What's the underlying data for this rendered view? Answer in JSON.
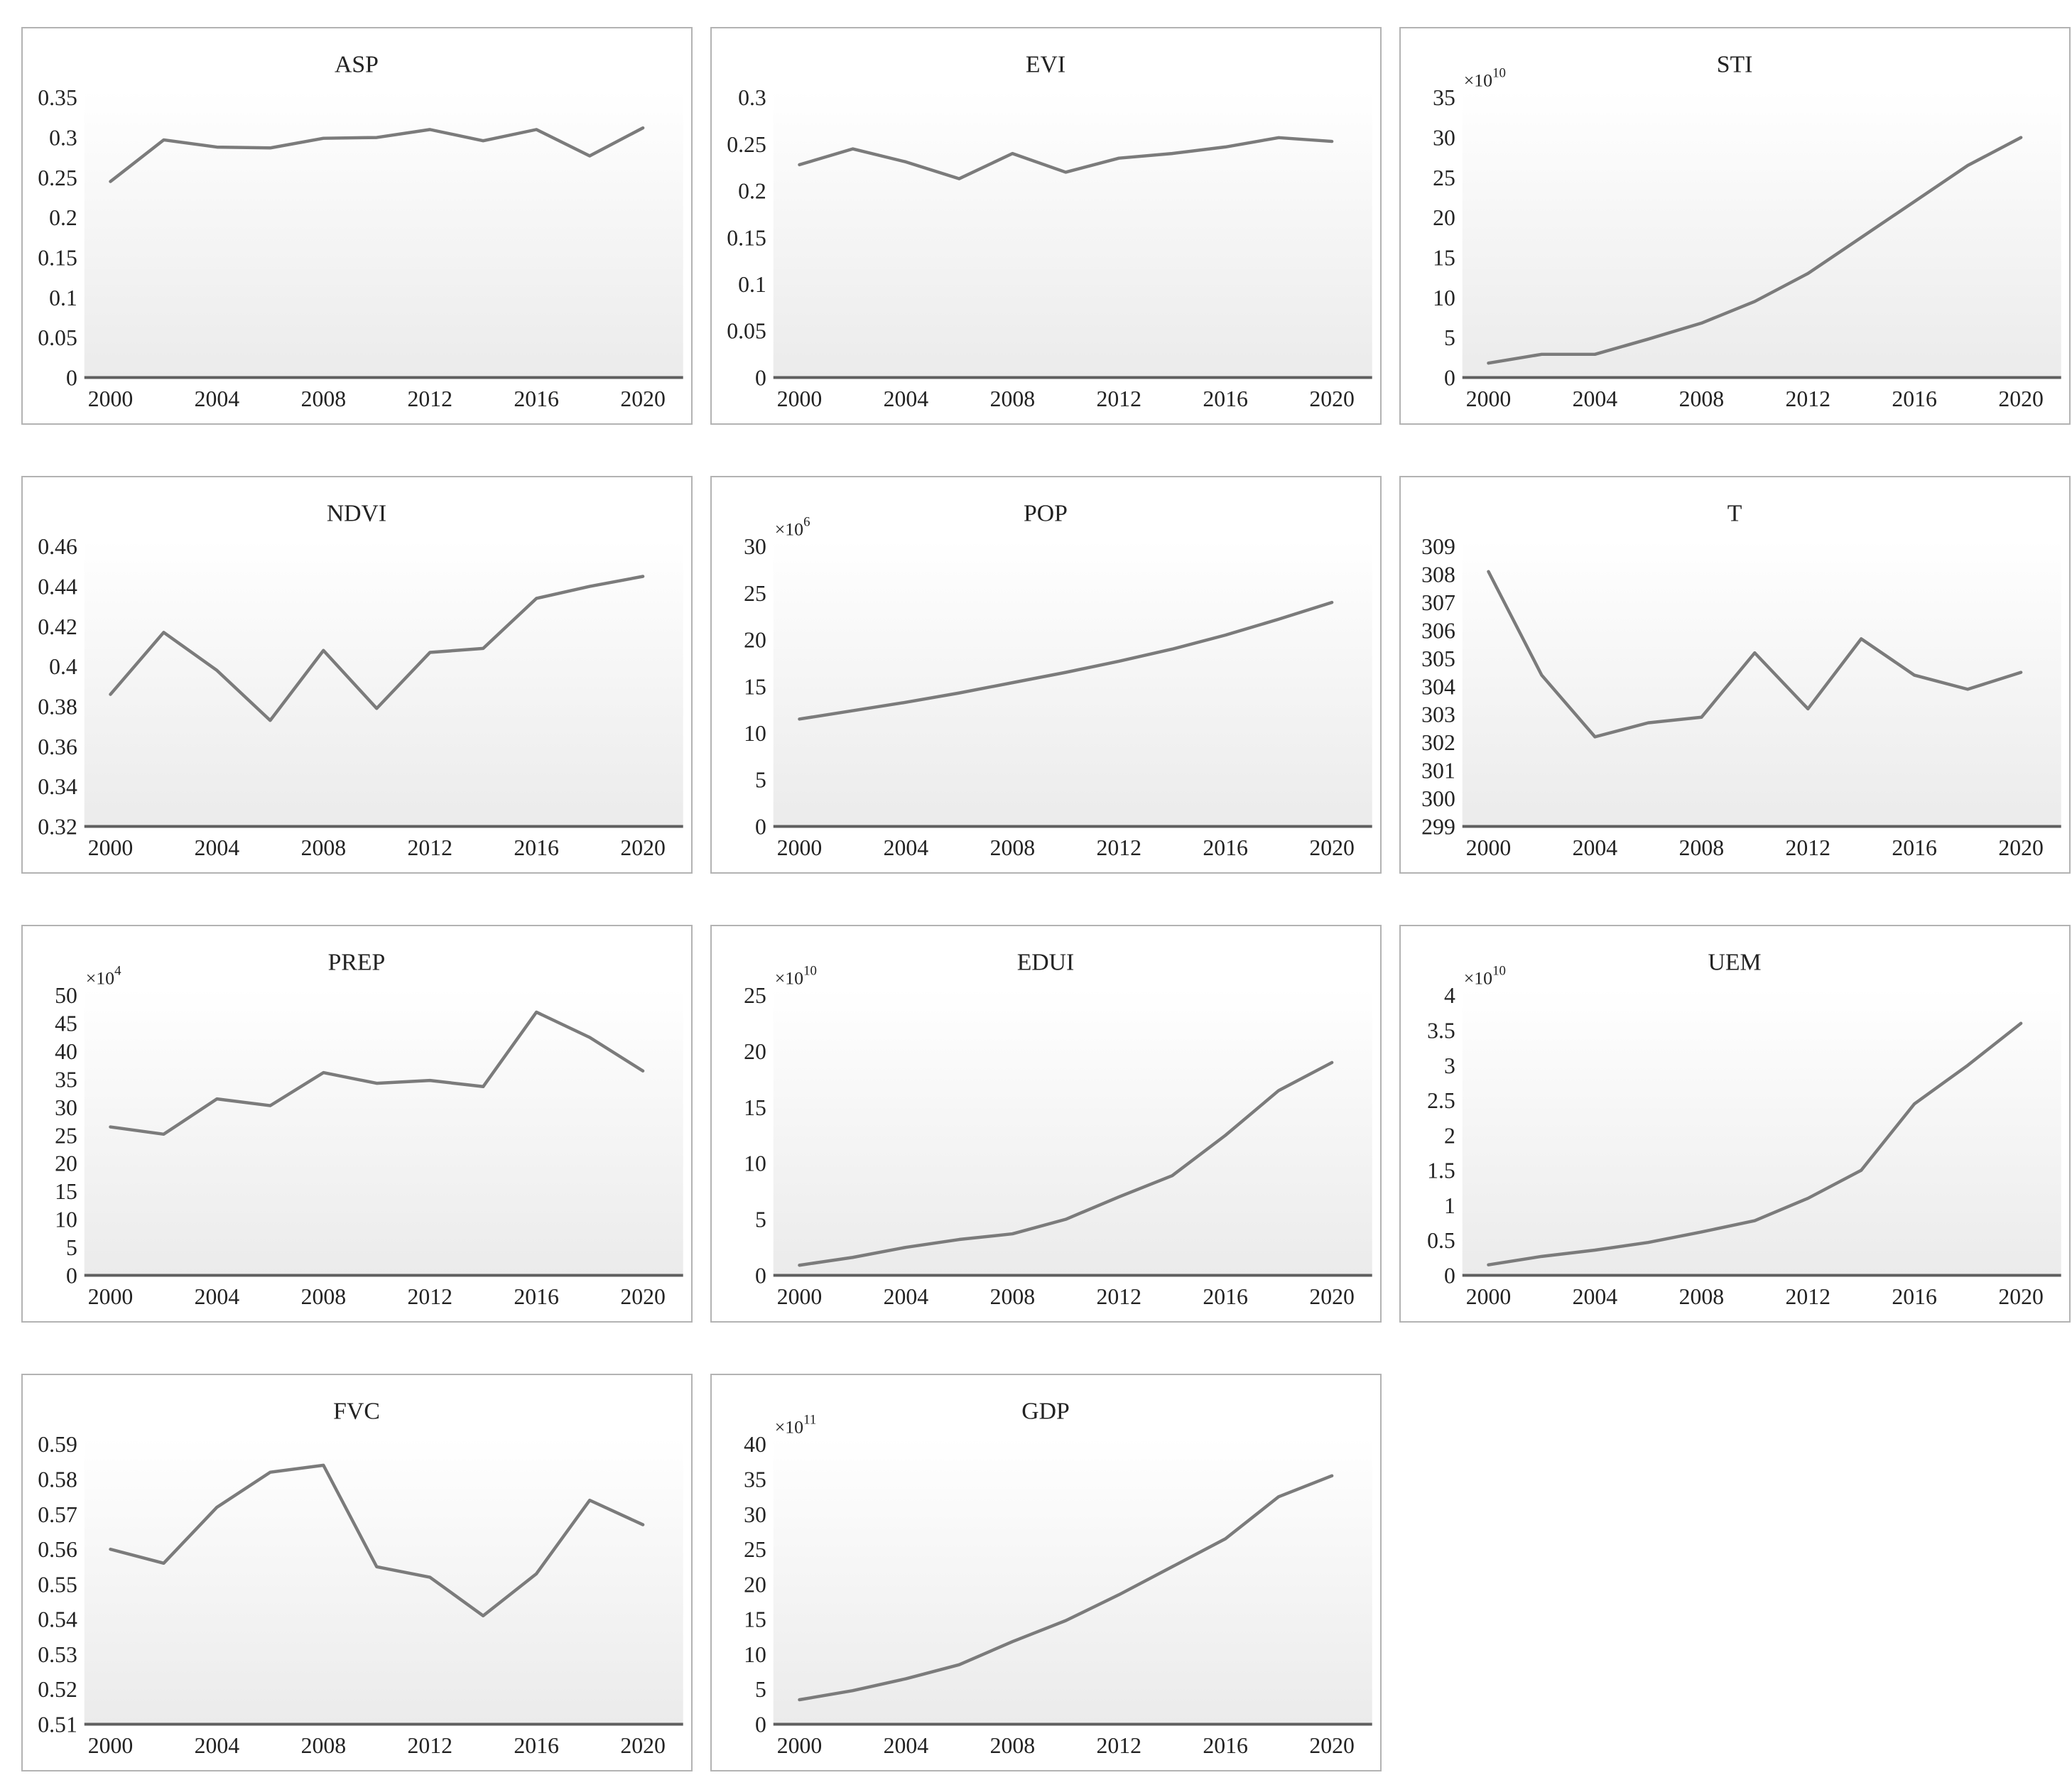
{
  "style": {
    "line_color": "#7b7b7b",
    "axis_color": "#5f5f5f",
    "border_color": "#b3b3b3",
    "text_color": "#222222",
    "plot_bg_top": "#ffffff",
    "plot_bg_bottom": "#ebebeb"
  },
  "x_tick_labels": [
    "2000",
    "2004",
    "2008",
    "2012",
    "2016",
    "2020"
  ],
  "chart_data": [
    {
      "type": "line",
      "title": "ASP",
      "exponent": null,
      "x": [
        2000,
        2002,
        2004,
        2006,
        2008,
        2010,
        2012,
        2014,
        2016,
        2018,
        2020
      ],
      "values": [
        0.245,
        0.297,
        0.288,
        0.287,
        0.299,
        0.3,
        0.31,
        0.296,
        0.31,
        0.277,
        0.312
      ],
      "ytick_labels": [
        "0",
        "0.05",
        "0.1",
        "0.15",
        "0.2",
        "0.25",
        "0.3",
        "0.35"
      ],
      "ylim": [
        0,
        0.35
      ],
      "xtick_labels": [
        "2000",
        "2004",
        "2008",
        "2012",
        "2016",
        "2020"
      ],
      "grid": false,
      "legend": null
    },
    {
      "type": "line",
      "title": "EVI",
      "exponent": null,
      "x": [
        2000,
        2002,
        2004,
        2006,
        2008,
        2010,
        2012,
        2014,
        2016,
        2018,
        2020
      ],
      "values": [
        0.228,
        0.245,
        0.231,
        0.213,
        0.24,
        0.22,
        0.235,
        0.24,
        0.247,
        0.257,
        0.253
      ],
      "ytick_labels": [
        "0",
        "0.05",
        "0.1",
        "0.15",
        "0.2",
        "0.25",
        "0.3"
      ],
      "ylim": [
        0,
        0.3
      ],
      "xtick_labels": [
        "2000",
        "2004",
        "2008",
        "2012",
        "2016",
        "2020"
      ],
      "grid": false,
      "legend": null
    },
    {
      "type": "line",
      "title": "STI",
      "exponent": "10",
      "x": [
        2000,
        2002,
        2004,
        2006,
        2008,
        2010,
        2012,
        2014,
        2016,
        2018,
        2020
      ],
      "values": [
        1.8,
        2.9,
        2.9,
        4.8,
        6.8,
        9.5,
        13,
        17.5,
        22,
        26.5,
        30
      ],
      "ytick_labels": [
        "0",
        "5",
        "10",
        "15",
        "20",
        "25",
        "30",
        "35"
      ],
      "ylim": [
        0,
        35
      ],
      "xtick_labels": [
        "2000",
        "2004",
        "2008",
        "2012",
        "2016",
        "2020"
      ],
      "grid": false,
      "legend": null
    },
    {
      "type": "line",
      "title": "NDVI",
      "exponent": null,
      "x": [
        2000,
        2002,
        2004,
        2006,
        2008,
        2010,
        2012,
        2014,
        2016,
        2018,
        2020
      ],
      "values": [
        0.386,
        0.417,
        0.398,
        0.373,
        0.408,
        0.379,
        0.407,
        0.409,
        0.434,
        0.44,
        0.445
      ],
      "ytick_labels": [
        "0.32",
        "0.34",
        "0.36",
        "0.38",
        "0.4",
        "0.42",
        "0.44",
        "0.46"
      ],
      "ylim": [
        0.32,
        0.46
      ],
      "xtick_labels": [
        "2000",
        "2004",
        "2008",
        "2012",
        "2016",
        "2020"
      ],
      "grid": false,
      "legend": null
    },
    {
      "type": "line",
      "title": "POP",
      "exponent": "6",
      "x": [
        2000,
        2002,
        2004,
        2006,
        2008,
        2010,
        2012,
        2014,
        2016,
        2018,
        2020
      ],
      "values": [
        11.5,
        12.4,
        13.3,
        14.3,
        15.4,
        16.5,
        17.7,
        19.0,
        20.5,
        22.2,
        24.0
      ],
      "ytick_labels": [
        "0",
        "5",
        "10",
        "15",
        "20",
        "25",
        "30"
      ],
      "ylim": [
        0,
        30
      ],
      "xtick_labels": [
        "2000",
        "2004",
        "2008",
        "2012",
        "2016",
        "2020"
      ],
      "grid": false,
      "legend": null
    },
    {
      "type": "line",
      "title": "T",
      "exponent": null,
      "x": [
        2000,
        2002,
        2004,
        2006,
        2008,
        2010,
        2012,
        2014,
        2016,
        2018,
        2020
      ],
      "values": [
        308.1,
        304.4,
        302.2,
        302.7,
        302.9,
        305.2,
        303.2,
        305.7,
        304.4,
        303.9,
        304.5
      ],
      "ytick_labels": [
        "299",
        "300",
        "301",
        "302",
        "303",
        "304",
        "305",
        "306",
        "307",
        "308",
        "309"
      ],
      "ylim": [
        299,
        309
      ],
      "xtick_labels": [
        "2000",
        "2004",
        "2008",
        "2012",
        "2016",
        "2020"
      ],
      "grid": false,
      "legend": null
    },
    {
      "type": "line",
      "title": "PREP",
      "exponent": "4",
      "x": [
        2000,
        2002,
        2004,
        2006,
        2008,
        2010,
        2012,
        2014,
        2016,
        2018,
        2020
      ],
      "values": [
        26.5,
        25.2,
        31.5,
        30.3,
        36.2,
        34.3,
        34.8,
        33.7,
        47.0,
        42.5,
        36.5
      ],
      "ytick_labels": [
        "0",
        "5",
        "10",
        "15",
        "20",
        "25",
        "30",
        "35",
        "40",
        "45",
        "50"
      ],
      "ylim": [
        0,
        50
      ],
      "xtick_labels": [
        "2000",
        "2004",
        "2008",
        "2012",
        "2016",
        "2020"
      ],
      "grid": false,
      "legend": null
    },
    {
      "type": "line",
      "title": "EDUI",
      "exponent": "10",
      "x": [
        2000,
        2002,
        2004,
        2006,
        2008,
        2010,
        2012,
        2014,
        2016,
        2018,
        2020
      ],
      "values": [
        0.9,
        1.6,
        2.5,
        3.2,
        3.7,
        5.0,
        7.0,
        8.9,
        12.5,
        16.5,
        19.0
      ],
      "ytick_labels": [
        "0",
        "5",
        "10",
        "15",
        "20",
        "25"
      ],
      "ylim": [
        0,
        25
      ],
      "xtick_labels": [
        "2000",
        "2004",
        "2008",
        "2012",
        "2016",
        "2020"
      ],
      "grid": false,
      "legend": null
    },
    {
      "type": "line",
      "title": "UEM",
      "exponent": "10",
      "x": [
        2000,
        2002,
        2004,
        2006,
        2008,
        2010,
        2012,
        2014,
        2016,
        2018,
        2020
      ],
      "values": [
        0.15,
        0.27,
        0.36,
        0.47,
        0.62,
        0.78,
        1.1,
        1.5,
        2.45,
        3.0,
        3.6
      ],
      "ytick_labels": [
        "0",
        "0.5",
        "1",
        "1.5",
        "2",
        "2.5",
        "3",
        "3.5",
        "4"
      ],
      "ylim": [
        0,
        4
      ],
      "xtick_labels": [
        "2000",
        "2004",
        "2008",
        "2012",
        "2016",
        "2020"
      ],
      "grid": false,
      "legend": null
    },
    {
      "type": "line",
      "title": "FVC",
      "exponent": null,
      "x": [
        2000,
        2002,
        2004,
        2006,
        2008,
        2010,
        2012,
        2014,
        2016,
        2018,
        2020
      ],
      "values": [
        0.56,
        0.556,
        0.572,
        0.582,
        0.584,
        0.555,
        0.552,
        0.541,
        0.553,
        0.574,
        0.567
      ],
      "ytick_labels": [
        "0.51",
        "0.52",
        "0.53",
        "0.54",
        "0.55",
        "0.56",
        "0.57",
        "0.58",
        "0.59"
      ],
      "ylim": [
        0.51,
        0.59
      ],
      "xtick_labels": [
        "2000",
        "2004",
        "2008",
        "2012",
        "2016",
        "2020"
      ],
      "grid": false,
      "legend": null
    },
    {
      "type": "line",
      "title": "GDP",
      "exponent": "11",
      "x": [
        2000,
        2002,
        2004,
        2006,
        2008,
        2010,
        2012,
        2014,
        2016,
        2018,
        2020
      ],
      "values": [
        3.5,
        4.8,
        6.5,
        8.5,
        11.8,
        14.8,
        18.5,
        22.5,
        26.5,
        32.5,
        35.5
      ],
      "ytick_labels": [
        "0",
        "5",
        "10",
        "15",
        "20",
        "25",
        "30",
        "35",
        "40"
      ],
      "ylim": [
        0,
        40
      ],
      "xtick_labels": [
        "2000",
        "2004",
        "2008",
        "2012",
        "2016",
        "2020"
      ],
      "grid": false,
      "legend": null
    }
  ]
}
